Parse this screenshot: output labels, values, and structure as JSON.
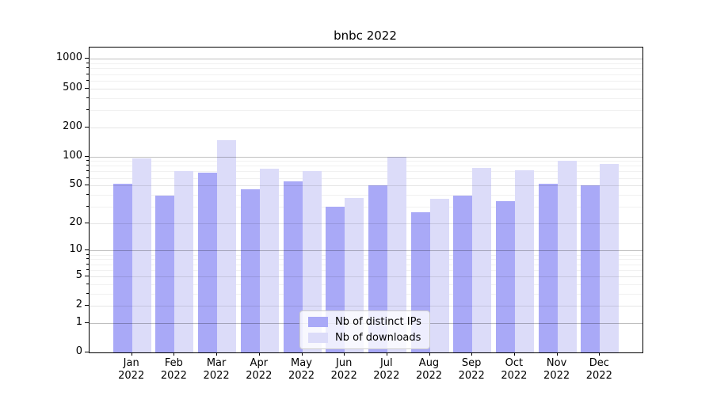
{
  "chart_data": {
    "type": "bar",
    "title": "bnbc 2022",
    "categories": [
      "Jan",
      "Feb",
      "Mar",
      "Apr",
      "May",
      "Jun",
      "Jul",
      "Aug",
      "Sep",
      "Oct",
      "Nov",
      "Dec"
    ],
    "category_year": "2022",
    "series": [
      {
        "name": "Nb of distinct IPs",
        "color": "#a9a9f7",
        "values": [
          52,
          39,
          68,
          46,
          55,
          30,
          50,
          26,
          39,
          34,
          52,
          50
        ]
      },
      {
        "name": "Nb of downloads",
        "color": "#dcdcf9",
        "values": [
          95,
          70,
          148,
          75,
          70,
          37,
          100,
          36,
          76,
          72,
          90,
          83
        ]
      }
    ],
    "yscale": "log10(1+value)",
    "yticks": [
      0,
      1,
      2,
      5,
      10,
      20,
      50,
      100,
      200,
      500,
      1000
    ],
    "ylim": [
      0,
      1300
    ],
    "xlabel": "",
    "ylabel": "",
    "grid": "horizontal major and minor gridlines",
    "legend_position": "lower center inside plot"
  }
}
